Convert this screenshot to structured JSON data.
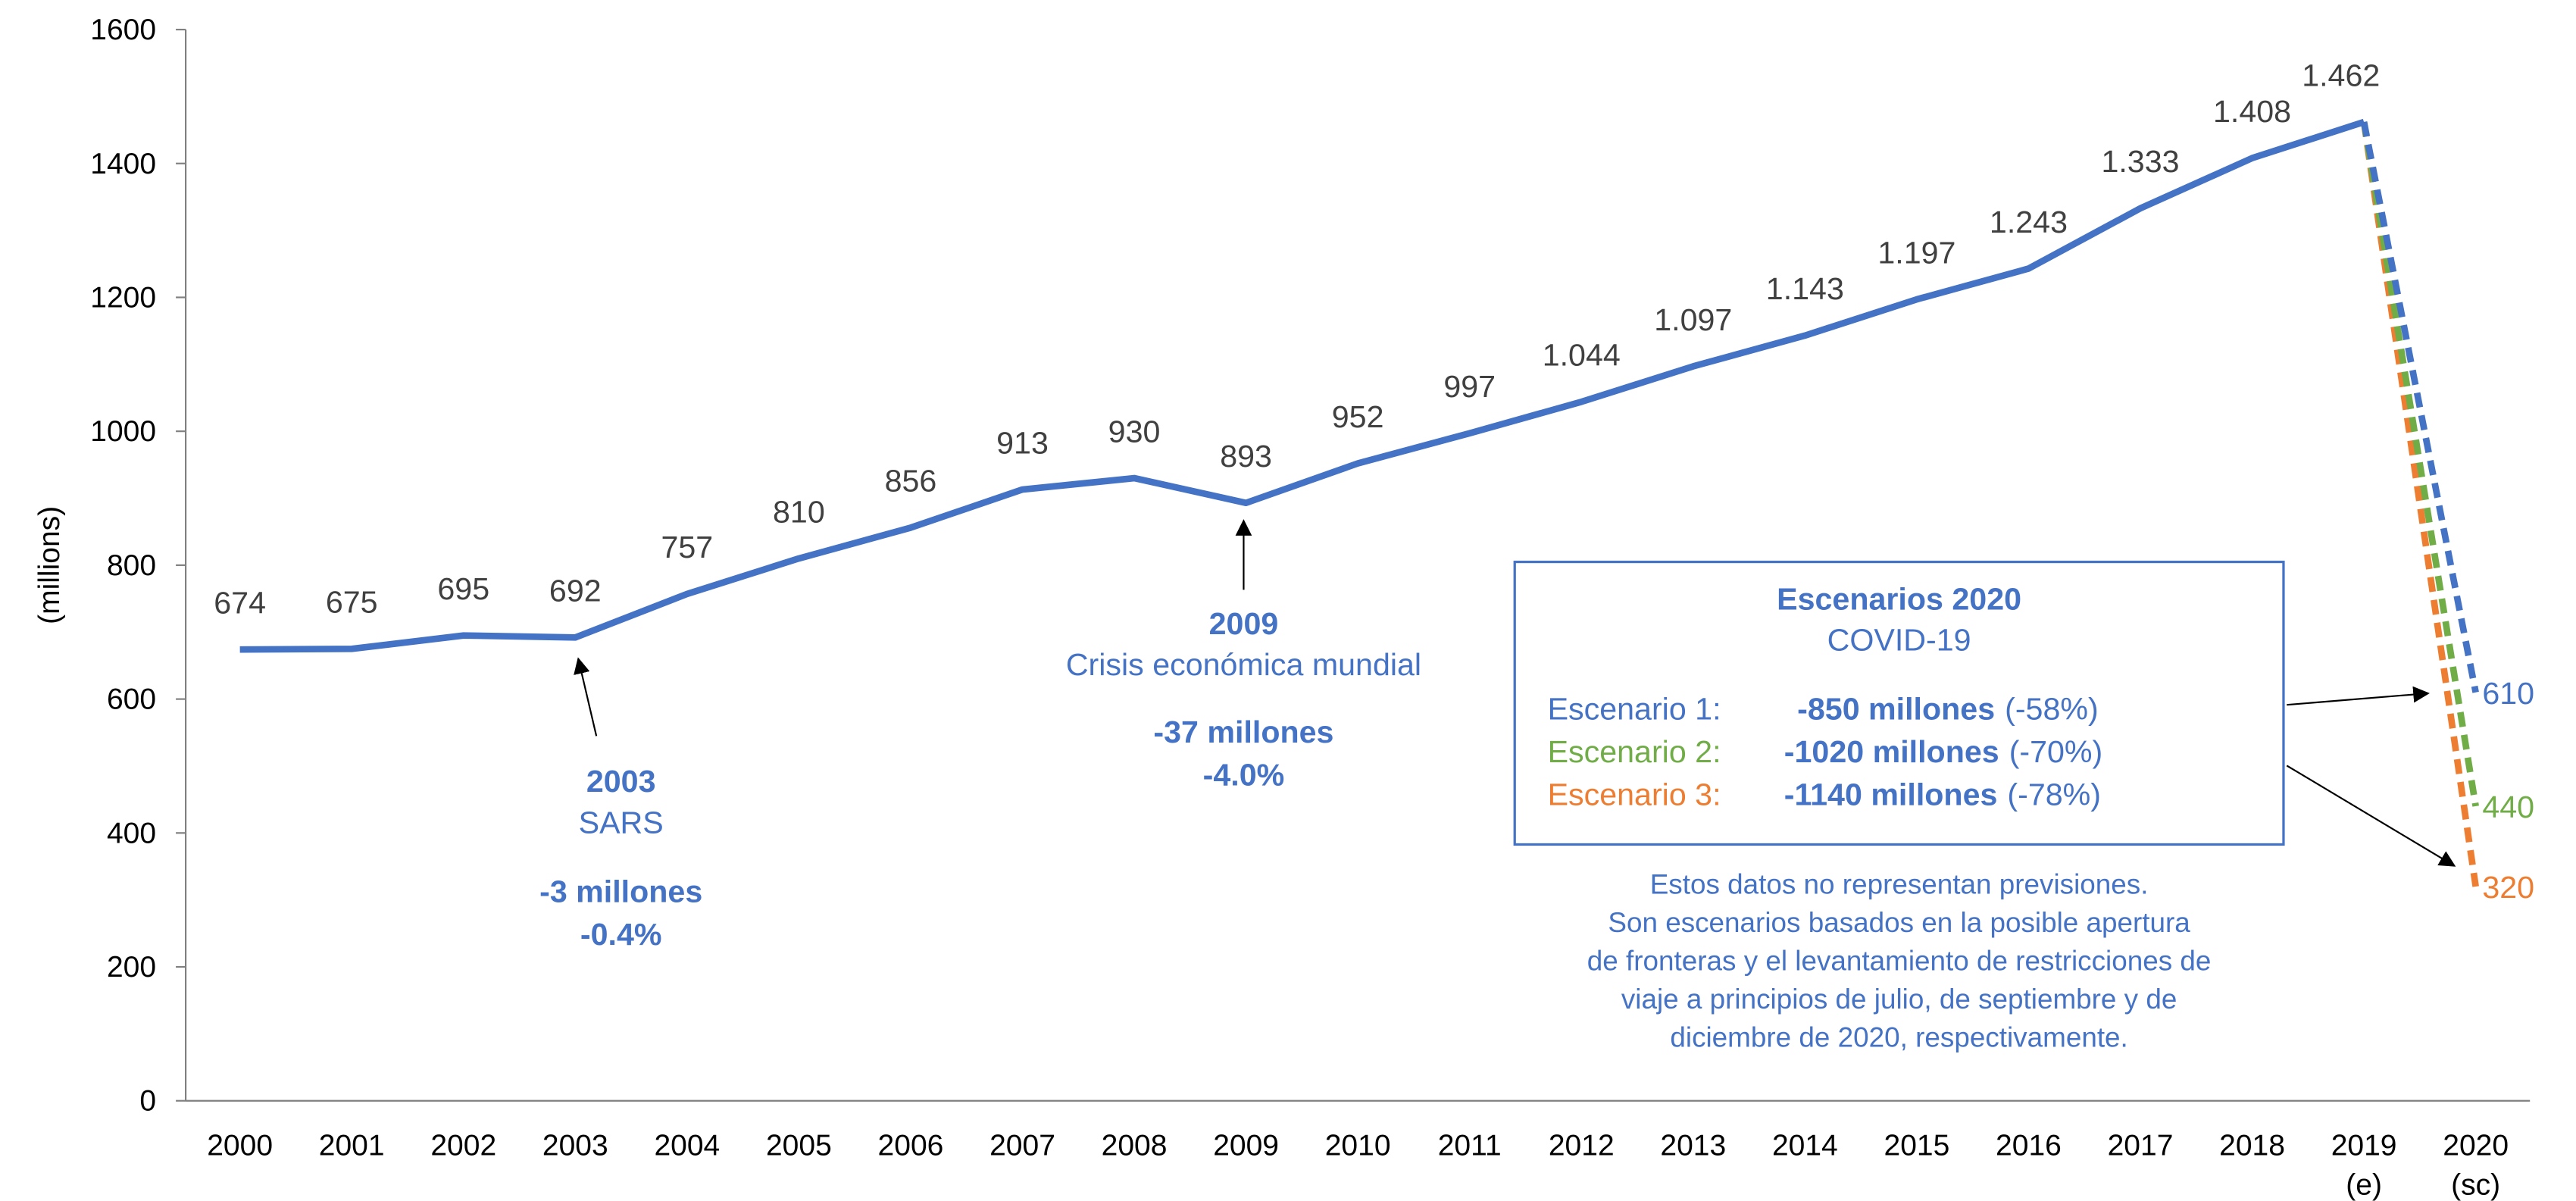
{
  "chart_data": {
    "type": "line",
    "y_label": "(millions)",
    "categories": [
      "2000",
      "2001",
      "2002",
      "2003",
      "2004",
      "2005",
      "2006",
      "2007",
      "2008",
      "2009",
      "2010",
      "2011",
      "2012",
      "2013",
      "2014",
      "2015",
      "2016",
      "2017",
      "2018",
      "2019 (e)",
      "2020 (sc)"
    ],
    "ylim": [
      0,
      1600
    ],
    "yticks": [
      0,
      200,
      400,
      600,
      800,
      1000,
      1200,
      1400,
      1600
    ],
    "grid": false,
    "series": [
      {
        "color": "#4472c4",
        "dashed": false,
        "values": [
          674,
          675,
          695,
          692,
          757,
          810,
          856,
          913,
          930,
          893,
          952,
          997,
          1044,
          1097,
          1143,
          1197,
          1243,
          1333,
          1408,
          1462,
          null
        ],
        "value_labels": [
          "674",
          "675",
          "695",
          "692",
          "757",
          "810",
          "856",
          "913",
          "930",
          "893",
          "952",
          "997",
          "1.044",
          "1.097",
          "1.143",
          "1.197",
          "1.243",
          "1.333",
          "1.408",
          "1.462",
          null
        ]
      },
      {
        "name": "Escenario 1:",
        "color": "#4472c4",
        "dashed": true,
        "values": [
          null,
          null,
          null,
          null,
          null,
          null,
          null,
          null,
          null,
          null,
          null,
          null,
          null,
          null,
          null,
          null,
          null,
          null,
          null,
          1462,
          610
        ]
      },
      {
        "name": "Escenario 2:",
        "color": "#70ad47",
        "dashed": true,
        "values": [
          null,
          null,
          null,
          null,
          null,
          null,
          null,
          null,
          null,
          null,
          null,
          null,
          null,
          null,
          null,
          null,
          null,
          null,
          null,
          1462,
          440
        ]
      },
      {
        "name": "Escenario 3:",
        "color": "#ed7d31",
        "dashed": true,
        "values": [
          null,
          null,
          null,
          null,
          null,
          null,
          null,
          null,
          null,
          null,
          null,
          null,
          null,
          null,
          null,
          null,
          null,
          null,
          null,
          1462,
          320
        ]
      }
    ],
    "annotations": [
      {
        "title": "2003",
        "subtitle": "SARS",
        "lines": [
          "-3 millones",
          "-0.4%"
        ]
      },
      {
        "title": "2009",
        "subtitle": "Crisis económica mundial",
        "lines": [
          "-37 millones",
          "-4.0%"
        ]
      }
    ],
    "scenario_box": {
      "title": "Escenarios 2020",
      "subtitle": "COVID-19",
      "rows": [
        {
          "amount": "-850 millones",
          "pct": "(-58%)"
        },
        {
          "amount": "-1020 millones",
          "pct": "(-70%)"
        },
        {
          "amount": "-1140 millones",
          "pct": "(-78%)"
        }
      ],
      "note": [
        "Estos datos no representan previsiones.",
        "Son escenarios basados en la posible apertura",
        "de fronteras y el levantamiento de restricciones de",
        "viaje a principios de julio, de septiembre y de",
        "diciembre de 2020, respectivamente."
      ]
    }
  }
}
